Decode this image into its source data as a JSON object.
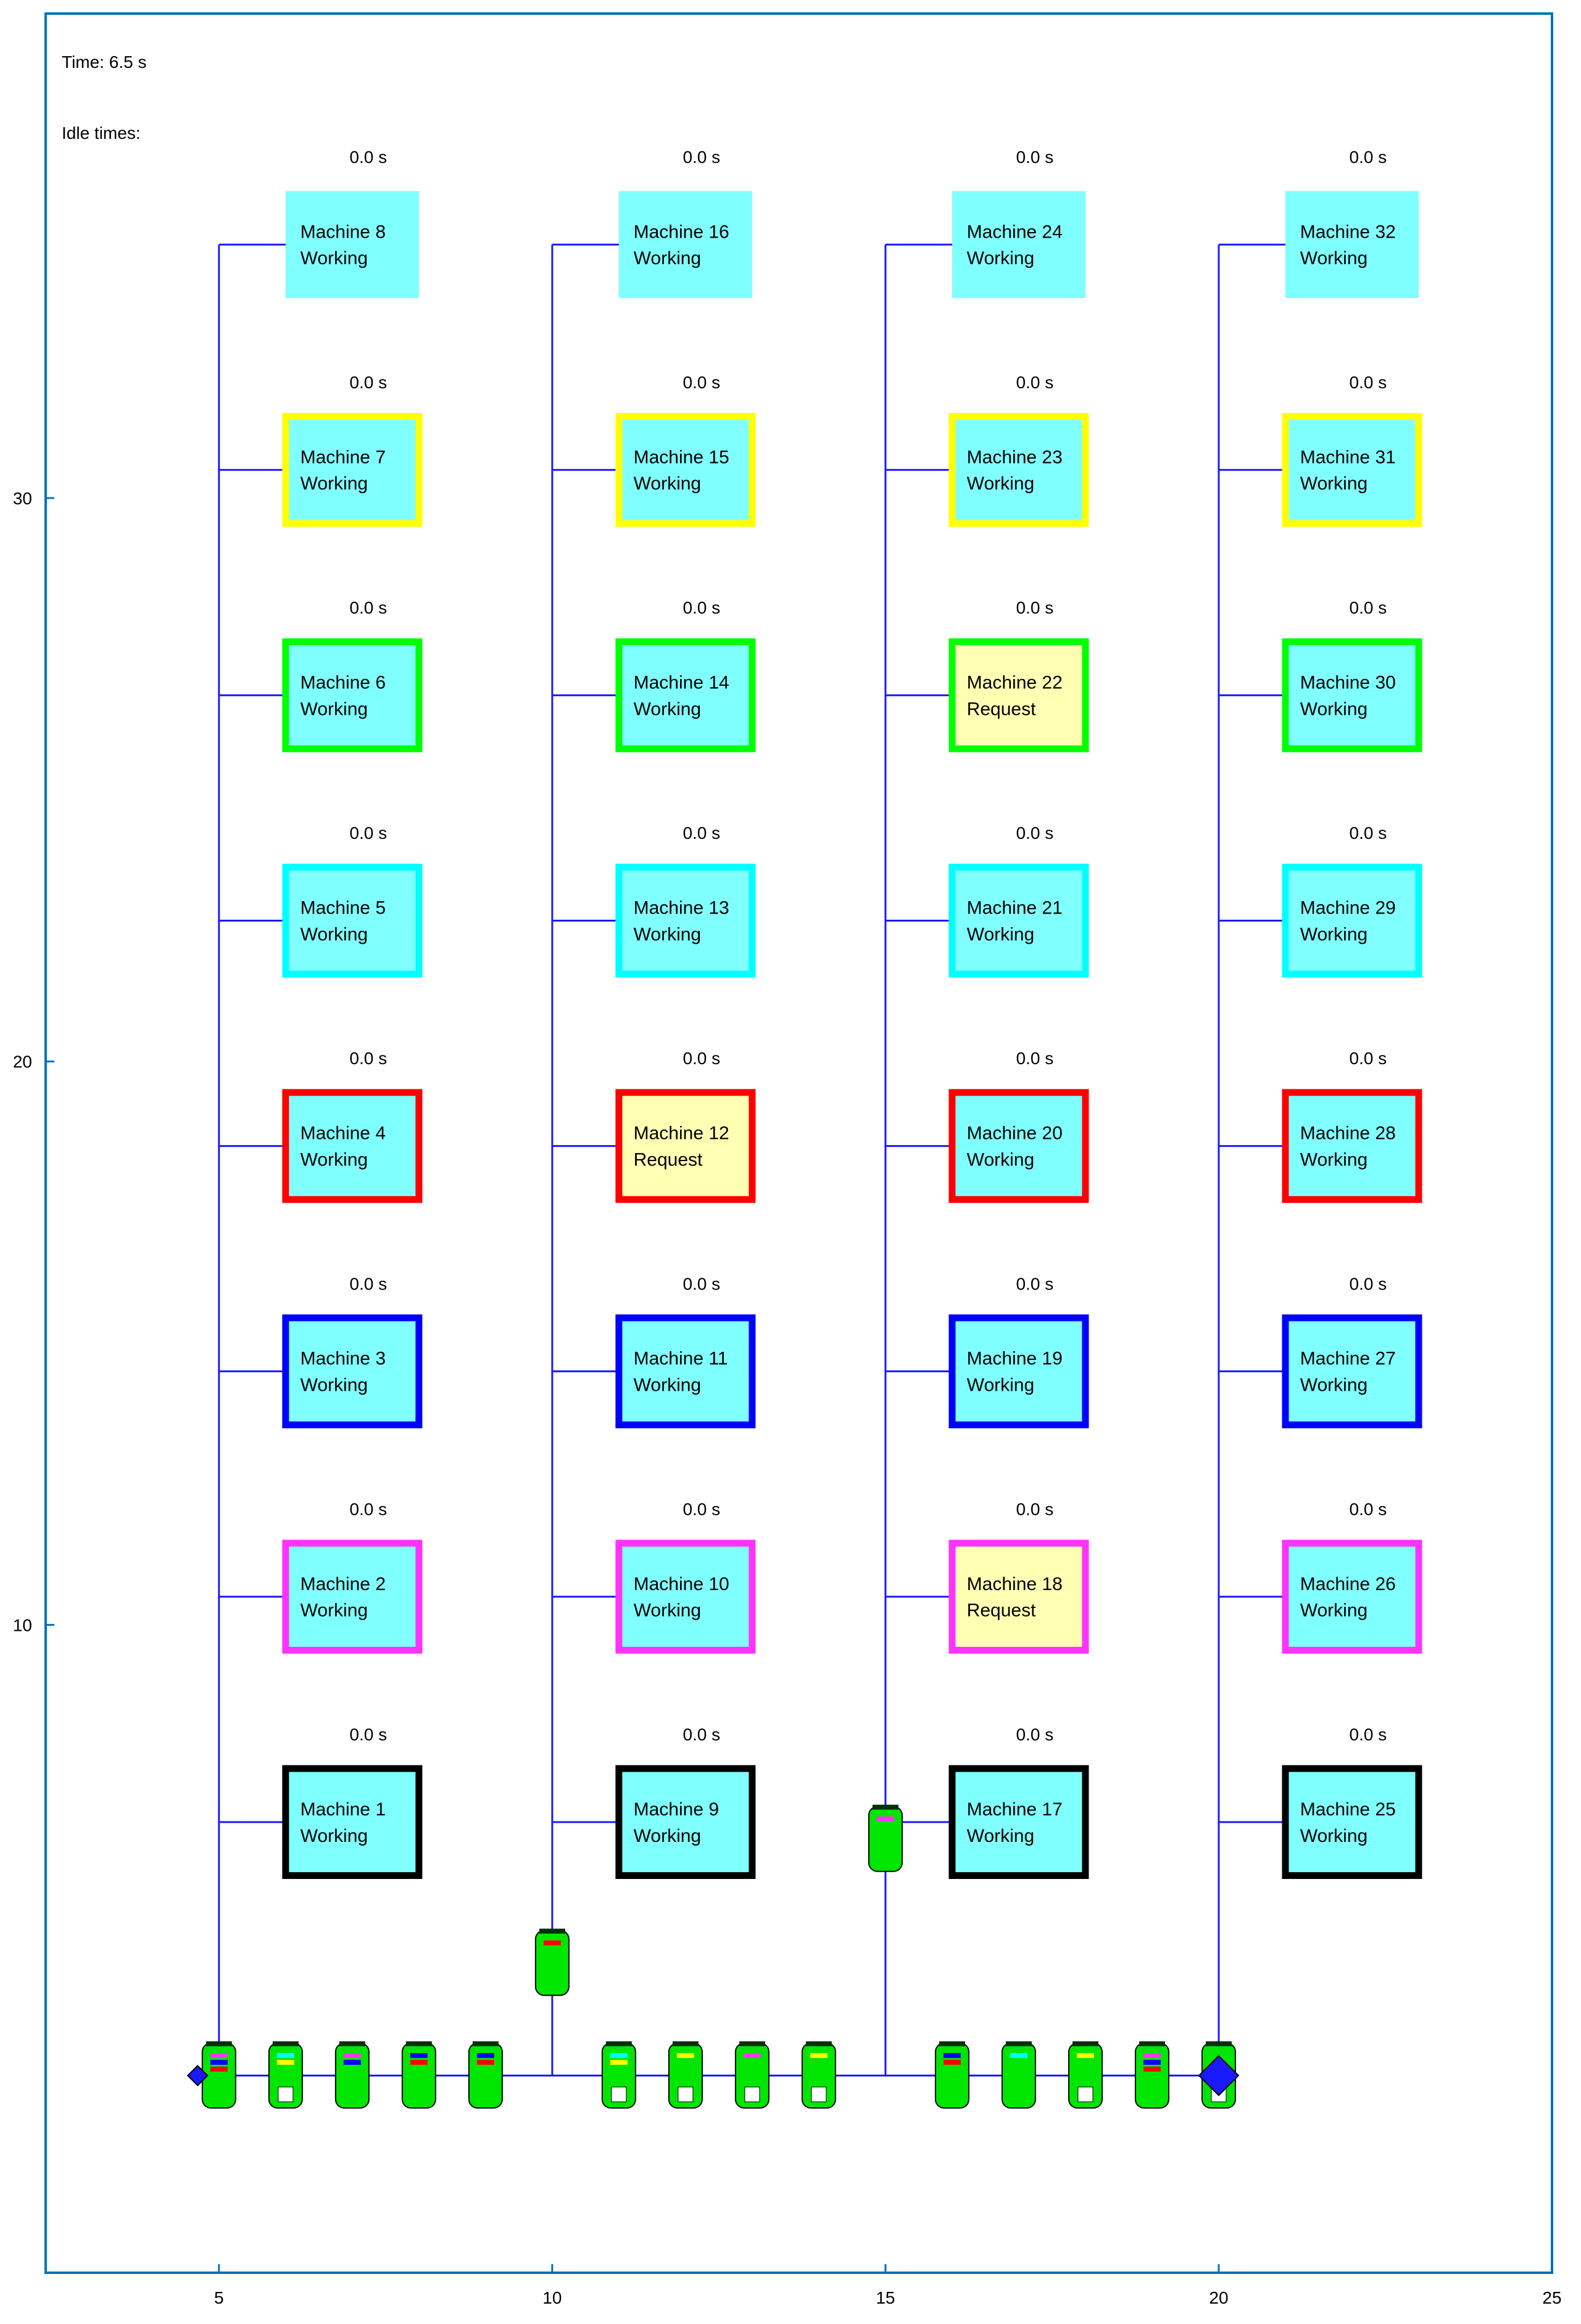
{
  "time_label": "Time: 6.5 s",
  "idle_label": "Idle times:",
  "x_ticks": [
    "5",
    "10",
    "15",
    "20",
    "25"
  ],
  "y_ticks": [
    "10",
    "20",
    "30"
  ],
  "x_tick_values": [
    5,
    10,
    15,
    20,
    25
  ],
  "y_tick_values": [
    10,
    20,
    30
  ],
  "axes": {
    "xlim": [
      2.4,
      25
    ],
    "ylim": [
      -1.5,
      38.6
    ]
  },
  "colors": {
    "axis": "#0072bd",
    "track": "#1a1aff",
    "machine_fill_working": "#80ffff",
    "machine_fill_request": "#ffffb3",
    "vehicle": "#00e600",
    "diamond": "#1a1aff"
  },
  "border_colors": {
    "1": "#000000",
    "2": "#ff33ff",
    "3": "#0000ff",
    "4": "#ff0000",
    "5": "#00ffff",
    "6": "#00ff00",
    "7": "#ffff00",
    "8": "none"
  },
  "column_x": [
    5,
    10,
    15,
    20
  ],
  "row_y": [
    6.5,
    10.5,
    14.5,
    18.5,
    22.5,
    26.5,
    30.5,
    34.5
  ],
  "track_y": 2,
  "machines": [
    {
      "id": 1,
      "name": "Machine 1",
      "status": "Working",
      "idle": "0.0 s",
      "col": 0,
      "row": 1
    },
    {
      "id": 2,
      "name": "Machine 2",
      "status": "Working",
      "idle": "0.0 s",
      "col": 0,
      "row": 2
    },
    {
      "id": 3,
      "name": "Machine 3",
      "status": "Working",
      "idle": "0.0 s",
      "col": 0,
      "row": 3
    },
    {
      "id": 4,
      "name": "Machine 4",
      "status": "Working",
      "idle": "0.0 s",
      "col": 0,
      "row": 4
    },
    {
      "id": 5,
      "name": "Machine 5",
      "status": "Working",
      "idle": "0.0 s",
      "col": 0,
      "row": 5
    },
    {
      "id": 6,
      "name": "Machine 6",
      "status": "Working",
      "idle": "0.0 s",
      "col": 0,
      "row": 6
    },
    {
      "id": 7,
      "name": "Machine 7",
      "status": "Working",
      "idle": "0.0 s",
      "col": 0,
      "row": 7
    },
    {
      "id": 8,
      "name": "Machine 8",
      "status": "Working",
      "idle": "0.0 s",
      "col": 0,
      "row": 8
    },
    {
      "id": 9,
      "name": "Machine 9",
      "status": "Working",
      "idle": "0.0 s",
      "col": 1,
      "row": 1
    },
    {
      "id": 10,
      "name": "Machine 10",
      "status": "Working",
      "idle": "0.0 s",
      "col": 1,
      "row": 2
    },
    {
      "id": 11,
      "name": "Machine 11",
      "status": "Working",
      "idle": "0.0 s",
      "col": 1,
      "row": 3
    },
    {
      "id": 12,
      "name": "Machine 12",
      "status": "Request",
      "idle": "0.0 s",
      "col": 1,
      "row": 4
    },
    {
      "id": 13,
      "name": "Machine 13",
      "status": "Working",
      "idle": "0.0 s",
      "col": 1,
      "row": 5
    },
    {
      "id": 14,
      "name": "Machine 14",
      "status": "Working",
      "idle": "0.0 s",
      "col": 1,
      "row": 6
    },
    {
      "id": 15,
      "name": "Machine 15",
      "status": "Working",
      "idle": "0.0 s",
      "col": 1,
      "row": 7
    },
    {
      "id": 16,
      "name": "Machine 16",
      "status": "Working",
      "idle": "0.0 s",
      "col": 1,
      "row": 8
    },
    {
      "id": 17,
      "name": "Machine 17",
      "status": "Working",
      "idle": "0.0 s",
      "col": 2,
      "row": 1
    },
    {
      "id": 18,
      "name": "Machine 18",
      "status": "Request",
      "idle": "0.0 s",
      "col": 2,
      "row": 2
    },
    {
      "id": 19,
      "name": "Machine 19",
      "status": "Working",
      "idle": "0.0 s",
      "col": 2,
      "row": 3
    },
    {
      "id": 20,
      "name": "Machine 20",
      "status": "Working",
      "idle": "0.0 s",
      "col": 2,
      "row": 4
    },
    {
      "id": 21,
      "name": "Machine 21",
      "status": "Working",
      "idle": "0.0 s",
      "col": 2,
      "row": 5
    },
    {
      "id": 22,
      "name": "Machine 22",
      "status": "Request",
      "idle": "0.0 s",
      "col": 2,
      "row": 6
    },
    {
      "id": 23,
      "name": "Machine 23",
      "status": "Working",
      "idle": "0.0 s",
      "col": 2,
      "row": 7
    },
    {
      "id": 24,
      "name": "Machine 24",
      "status": "Working",
      "idle": "0.0 s",
      "col": 2,
      "row": 8
    },
    {
      "id": 25,
      "name": "Machine 25",
      "status": "Working",
      "idle": "0.0 s",
      "col": 3,
      "row": 1
    },
    {
      "id": 26,
      "name": "Machine 26",
      "status": "Working",
      "idle": "0.0 s",
      "col": 3,
      "row": 2
    },
    {
      "id": 27,
      "name": "Machine 27",
      "status": "Working",
      "idle": "0.0 s",
      "col": 3,
      "row": 3
    },
    {
      "id": 28,
      "name": "Machine 28",
      "status": "Working",
      "idle": "0.0 s",
      "col": 3,
      "row": 4
    },
    {
      "id": 29,
      "name": "Machine 29",
      "status": "Working",
      "idle": "0.0 s",
      "col": 3,
      "row": 5
    },
    {
      "id": 30,
      "name": "Machine 30",
      "status": "Working",
      "idle": "0.0 s",
      "col": 3,
      "row": 6
    },
    {
      "id": 31,
      "name": "Machine 31",
      "status": "Working",
      "idle": "0.0 s",
      "col": 3,
      "row": 7
    },
    {
      "id": 32,
      "name": "Machine 32",
      "status": "Working",
      "idle": "0.0 s",
      "col": 3,
      "row": 8
    }
  ],
  "vehicles": [
    {
      "x": 5,
      "y": 2,
      "loaded": true,
      "marks": [
        "#ff33ff",
        "#0000ff",
        "#ff0000"
      ]
    },
    {
      "x": 6,
      "y": 2,
      "loaded": false,
      "marks": [
        "#00ffff",
        "#ffff00"
      ]
    },
    {
      "x": 7,
      "y": 2,
      "loaded": true,
      "marks": [
        "#ff33ff",
        "#0000ff"
      ]
    },
    {
      "x": 8,
      "y": 2,
      "loaded": true,
      "marks": [
        "#0000ff",
        "#ff0000"
      ]
    },
    {
      "x": 9,
      "y": 2,
      "loaded": true,
      "marks": [
        "#0000ff",
        "#ff0000"
      ]
    },
    {
      "x": 10,
      "y": 4,
      "loaded": true,
      "marks": [
        "#ff0000"
      ]
    },
    {
      "x": 11,
      "y": 2,
      "loaded": false,
      "marks": [
        "#00ffff",
        "#ffff00"
      ]
    },
    {
      "x": 12,
      "y": 2,
      "loaded": false,
      "marks": [
        "#ffff00"
      ]
    },
    {
      "x": 13,
      "y": 2,
      "loaded": false,
      "marks": [
        "#ff33ff"
      ]
    },
    {
      "x": 14,
      "y": 2,
      "loaded": false,
      "marks": [
        "#ffff00"
      ]
    },
    {
      "x": 15,
      "y": 6.2,
      "loaded": true,
      "marks": [
        "#ff33ff"
      ]
    },
    {
      "x": 16,
      "y": 2,
      "loaded": true,
      "marks": [
        "#0000ff",
        "#ff0000"
      ]
    },
    {
      "x": 17,
      "y": 2,
      "loaded": true,
      "marks": [
        "#00ffff"
      ]
    },
    {
      "x": 18,
      "y": 2,
      "loaded": false,
      "marks": [
        "#ffff00"
      ]
    },
    {
      "x": 19,
      "y": 2,
      "loaded": true,
      "marks": [
        "#ff33ff",
        "#0000ff",
        "#ff0000"
      ]
    },
    {
      "x": 20,
      "y": 2,
      "loaded": false,
      "marks": []
    }
  ],
  "diamonds": [
    {
      "x": 5,
      "y": 2,
      "size": "small"
    },
    {
      "x": 20,
      "y": 2,
      "size": "large"
    }
  ]
}
